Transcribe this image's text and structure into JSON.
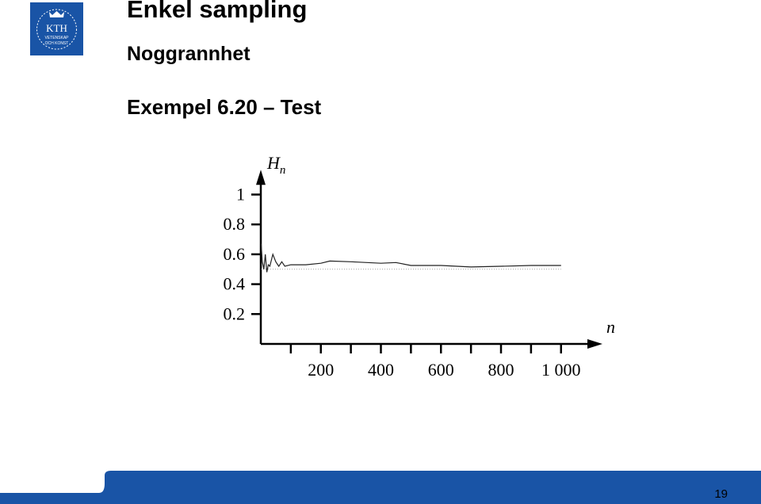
{
  "header": {
    "title": "Enkel sampling",
    "subtitle": "Noggrannhet",
    "heading": "Exempel 6.20 – Test"
  },
  "logo": {
    "name": "KTH",
    "line1": "VETENSKAP",
    "line2": "OCH KONST"
  },
  "footer": {
    "page": "19"
  },
  "chart_data": {
    "type": "line",
    "ylabel": {
      "main": "H",
      "sub": "n"
    },
    "xlabel": "n",
    "x": [
      1,
      5,
      10,
      15,
      20,
      25,
      30,
      40,
      50,
      60,
      70,
      80,
      100,
      150,
      200,
      230,
      300,
      400,
      450,
      500,
      600,
      700,
      800,
      900,
      1000
    ],
    "series": [
      {
        "color": "#222222",
        "values": [
          0.67,
          0.55,
          0.5,
          0.6,
          0.48,
          0.53,
          0.52,
          0.6,
          0.55,
          0.52,
          0.55,
          0.52,
          0.53,
          0.53,
          0.54,
          0.555,
          0.55,
          0.54,
          0.545,
          0.525,
          0.525,
          0.515,
          0.52,
          0.525,
          0.525
        ]
      }
    ],
    "reference_line": 0.5,
    "xlim": [
      0,
      1130
    ],
    "ylim": [
      0,
      1.15
    ],
    "xticks": [
      200,
      400,
      600,
      800,
      {
        "value": 1000,
        "label": "1 000"
      }
    ],
    "xminor_ticks": [
      100,
      300,
      500,
      700,
      900
    ],
    "yticks": [
      0.2,
      0.4,
      0.6,
      0.8,
      1
    ]
  }
}
